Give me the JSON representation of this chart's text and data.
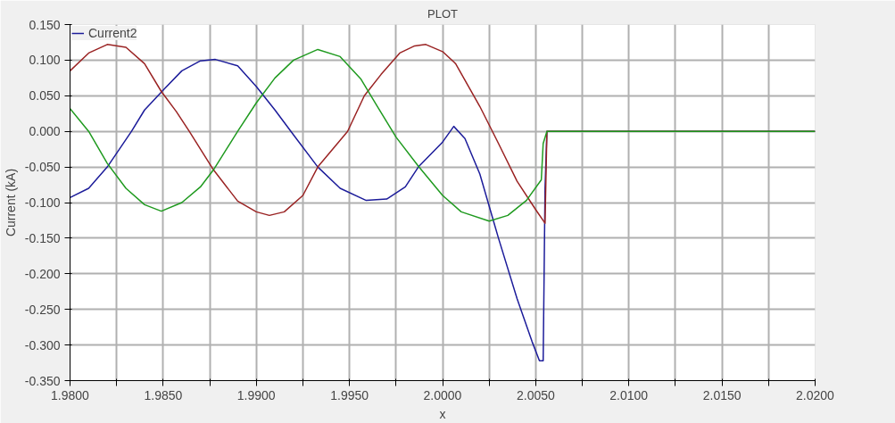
{
  "chart_data": {
    "type": "line",
    "title": "PLOT",
    "xlabel": "x",
    "ylabel": "Current (kA)",
    "xlim": [
      1.98,
      2.02
    ],
    "ylim": [
      -0.35,
      0.15
    ],
    "xticks": [
      {
        "value": 1.98,
        "label": "1.9800"
      },
      {
        "value": 1.9825,
        "label": null
      },
      {
        "value": 1.985,
        "label": "1.9850"
      },
      {
        "value": 1.9875,
        "label": null
      },
      {
        "value": 1.99,
        "label": "1.9900"
      },
      {
        "value": 1.9925,
        "label": null
      },
      {
        "value": 1.995,
        "label": "1.9950"
      },
      {
        "value": 1.9975,
        "label": null
      },
      {
        "value": 2.0,
        "label": "2.0000"
      },
      {
        "value": 2.0025,
        "label": null
      },
      {
        "value": 2.005,
        "label": "2.0050"
      },
      {
        "value": 2.0075,
        "label": null
      },
      {
        "value": 2.01,
        "label": "2.0100"
      },
      {
        "value": 2.0125,
        "label": null
      },
      {
        "value": 2.015,
        "label": "2.0150"
      },
      {
        "value": 2.0175,
        "label": null
      },
      {
        "value": 2.02,
        "label": "2.0200"
      }
    ],
    "yticks": [
      {
        "value": 0.15,
        "label": "0.150"
      },
      {
        "value": 0.1,
        "label": "0.100"
      },
      {
        "value": 0.05,
        "label": "0.050"
      },
      {
        "value": 0.0,
        "label": "0.000"
      },
      {
        "value": -0.05,
        "label": "-0.050"
      },
      {
        "value": -0.1,
        "label": "-0.100"
      },
      {
        "value": -0.15,
        "label": "-0.150"
      },
      {
        "value": -0.2,
        "label": "-0.200"
      },
      {
        "value": -0.25,
        "label": "-0.250"
      },
      {
        "value": -0.3,
        "label": "-0.300"
      },
      {
        "value": -0.35,
        "label": "-0.350"
      }
    ],
    "grid": true,
    "legend": "top left",
    "series": [
      {
        "name": "Current2",
        "color": "#1c1c9a",
        "x": [
          1.98,
          1.981,
          1.982,
          1.9833,
          1.984,
          1.985,
          1.986,
          1.987,
          1.9878,
          1.989,
          1.99,
          1.991,
          1.992,
          1.9933,
          1.9945,
          1.9959,
          1.997,
          1.998,
          1.9987,
          2.0,
          2.0006,
          2.0012,
          2.002,
          2.003,
          2.004,
          2.0048,
          2.0052,
          2.0054,
          2.0055,
          2.0056,
          2.02
        ],
        "values": [
          -0.093,
          -0.08,
          -0.05,
          0.0,
          0.03,
          0.058,
          0.085,
          0.099,
          0.101,
          0.092,
          0.063,
          0.03,
          -0.005,
          -0.05,
          -0.08,
          -0.097,
          -0.095,
          -0.078,
          -0.05,
          -0.015,
          0.007,
          -0.01,
          -0.06,
          -0.15,
          -0.235,
          -0.295,
          -0.322,
          -0.322,
          -0.08,
          0.0,
          0.0
        ]
      },
      {
        "color": "#9a2323",
        "x": [
          1.98,
          1.981,
          1.982,
          1.983,
          1.984,
          1.9849,
          1.9857,
          1.9864,
          1.9877,
          1.989,
          1.99,
          1.9907,
          1.9915,
          1.9925,
          1.9933,
          1.9949,
          1.9958,
          1.9967,
          1.9977,
          1.9985,
          1.9991,
          2.0,
          2.0007,
          2.002,
          2.003,
          2.004,
          2.005,
          2.0055,
          2.0056,
          2.02
        ],
        "values": [
          0.085,
          0.11,
          0.122,
          0.118,
          0.095,
          0.056,
          0.028,
          0.0,
          -0.054,
          -0.098,
          -0.113,
          -0.118,
          -0.113,
          -0.09,
          -0.05,
          0.0,
          0.05,
          0.08,
          0.11,
          0.12,
          0.122,
          0.112,
          0.095,
          0.035,
          -0.017,
          -0.07,
          -0.11,
          -0.129,
          0.0,
          0.0
        ]
      },
      {
        "color": "#1f9a1f",
        "x": [
          1.98,
          1.981,
          1.982,
          1.983,
          1.984,
          1.9849,
          1.986,
          1.987,
          1.9877,
          1.989,
          1.99,
          1.991,
          1.992,
          1.9933,
          1.9945,
          1.9956,
          1.9965,
          1.9975,
          1.9987,
          2.0,
          2.001,
          2.0025,
          2.0035,
          2.0045,
          2.0053,
          2.0054,
          2.0056,
          2.02
        ],
        "values": [
          0.032,
          0.0,
          -0.045,
          -0.08,
          -0.103,
          -0.112,
          -0.1,
          -0.078,
          -0.054,
          0.0,
          0.04,
          0.075,
          0.1,
          0.115,
          0.105,
          0.074,
          0.035,
          -0.008,
          -0.049,
          -0.09,
          -0.113,
          -0.126,
          -0.118,
          -0.097,
          -0.068,
          -0.017,
          0.0,
          0.0
        ]
      }
    ]
  }
}
